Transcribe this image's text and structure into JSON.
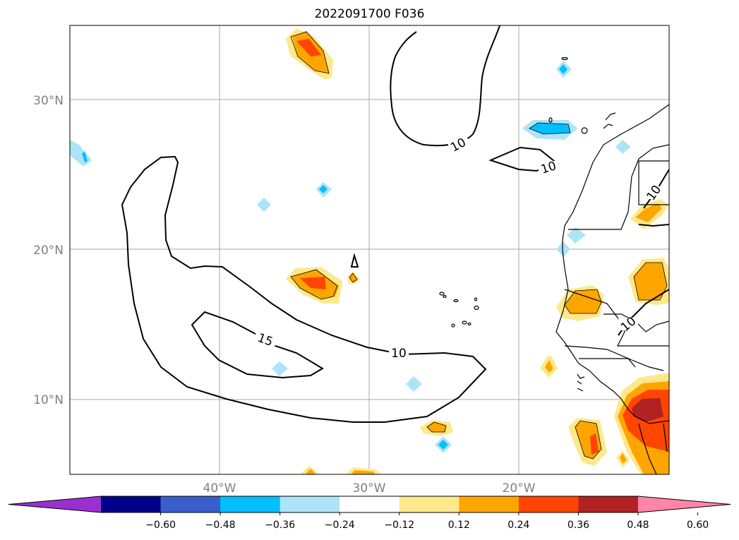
{
  "title": "2022091700 F036",
  "lat_labels": [
    "30°N",
    "20°N",
    "10°N"
  ],
  "lon_labels": [
    "40°W",
    "30°W",
    "20°W"
  ],
  "contour_labels": [
    "10",
    "10",
    "15",
    "10",
    "10",
    "10"
  ],
  "colorbar": {
    "ticks": [
      "−0.60",
      "−0.48",
      "−0.36",
      "−0.24",
      "−0.12",
      "0.12",
      "0.24",
      "0.36",
      "0.48",
      "0.60"
    ],
    "colors": [
      "#9b30d0",
      "#00008b",
      "#3a5fcd",
      "#00bfff",
      "#ade4f8",
      "#ffffff",
      "#fde98c",
      "#ffa500",
      "#ff4500",
      "#b22222",
      "#ff85a8"
    ]
  },
  "colors": {
    "grid": "#a9a9a9",
    "contour": "#000000",
    "coast": "#000000"
  }
}
